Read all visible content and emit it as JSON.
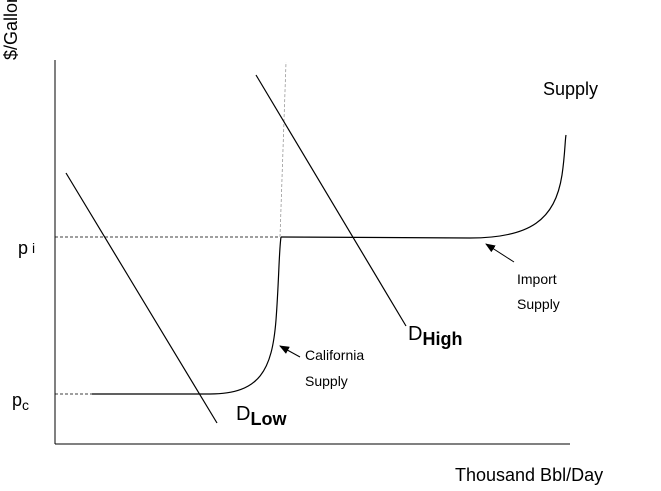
{
  "axes": {
    "y_label": "$/Gallon",
    "x_label": "Thousand Bbl/Day"
  },
  "price_levels": [
    {
      "symbol": "p",
      "subscript": "i"
    },
    {
      "symbol": "p",
      "subscript": "c"
    }
  ],
  "curves": {
    "supply": "Supply",
    "demand_high": {
      "symbol": "D",
      "subscript": "High"
    },
    "demand_low": {
      "symbol": "D",
      "subscript": "Low"
    }
  },
  "annotations": [
    {
      "lines": [
        "California",
        "Supply"
      ]
    },
    {
      "lines": [
        "Import",
        "Supply"
      ]
    }
  ]
}
